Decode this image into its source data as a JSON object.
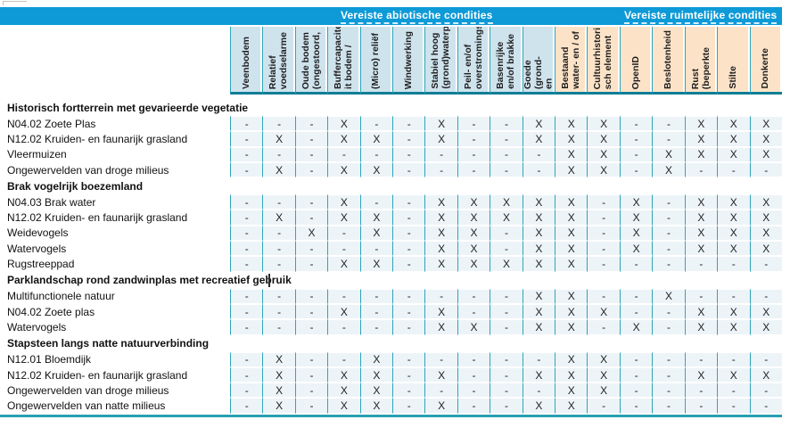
{
  "header": {
    "groups": [
      {
        "label": "Vereiste abiotische condities"
      },
      {
        "label": "Vereiste ruimtelijke condities"
      }
    ]
  },
  "columns": [
    {
      "label": "Veenbodem",
      "tint": "blue"
    },
    {
      "label": "Relatief\nvoedselarme",
      "tint": "blue"
    },
    {
      "label": "Oude bodem\n(ongestoord,",
      "tint": "blue"
    },
    {
      "label": "Buffercapacite\nit bodem /",
      "tint": "blue"
    },
    {
      "label": "(Micro) reliëf",
      "tint": "blue"
    },
    {
      "label": "Windwerking",
      "tint": "blue"
    },
    {
      "label": "Stabiel hoog\n(grond)waterp",
      "tint": "blue"
    },
    {
      "label": "Peil- en/of\noverstromings",
      "tint": "blue"
    },
    {
      "label": "Basenrijke\nen/of brakke",
      "tint": "blue"
    },
    {
      "label": "Goede (grond-\nen",
      "tint": "blue"
    },
    {
      "label": "Bestaand\nwater- en / of",
      "tint": "peach"
    },
    {
      "label": "Cultuurhistori\nsch element",
      "tint": "peach"
    },
    {
      "label": "OpenID",
      "tint": "peach"
    },
    {
      "label": "Beslotenheid",
      "tint": "peach"
    },
    {
      "label": "Rust\n(beperkte",
      "tint": "peach"
    },
    {
      "label": "Stilte",
      "tint": "peach"
    },
    {
      "label": "Donkerte",
      "tint": "peach"
    }
  ],
  "sections": [
    {
      "title": "Historisch fortterrein met gevarieerde vegetatie",
      "caret": false,
      "rows": [
        {
          "label": "N04.02 Zoete Plas",
          "values": [
            "-",
            "-",
            "-",
            "X",
            "-",
            "-",
            "X",
            "-",
            "-",
            "X",
            "X",
            "X",
            "-",
            "-",
            "X",
            "X",
            "X"
          ]
        },
        {
          "label": "N12.02 Kruiden- en faunarijk grasland",
          "values": [
            "-",
            "X",
            "-",
            "X",
            "X",
            "-",
            "X",
            "-",
            "-",
            "X",
            "X",
            "X",
            "-",
            "-",
            "X",
            "X",
            "X"
          ]
        },
        {
          "label": "Vleermuizen",
          "values": [
            "-",
            "-",
            "-",
            "-",
            "-",
            "-",
            "-",
            "-",
            "-",
            "-",
            "X",
            "X",
            "-",
            "X",
            "X",
            "X",
            "X"
          ]
        },
        {
          "label": "Ongewervelden van droge milieus",
          "values": [
            "-",
            "X",
            "-",
            "X",
            "X",
            "-",
            "-",
            "-",
            "-",
            "-",
            "X",
            "X",
            "-",
            "X",
            "-",
            "-",
            "-"
          ]
        }
      ]
    },
    {
      "title": "Brak vogelrijk boezemland",
      "caret": false,
      "rows": [
        {
          "label": "N04.03 Brak water",
          "values": [
            "-",
            "-",
            "-",
            "X",
            "-",
            "-",
            "X",
            "X",
            "X",
            "X",
            "X",
            "-",
            "X",
            "-",
            "X",
            "X",
            "X"
          ]
        },
        {
          "label": "N12.02 Kruiden- en faunarijk grasland",
          "values": [
            "-",
            "X",
            "-",
            "X",
            "X",
            "-",
            "X",
            "X",
            "X",
            "X",
            "X",
            "-",
            "X",
            "-",
            "X",
            "X",
            "X"
          ]
        },
        {
          "label": "Weidevogels",
          "values": [
            "-",
            "-",
            "X",
            "-",
            "X",
            "-",
            "X",
            "X",
            "-",
            "X",
            "X",
            "-",
            "X",
            "-",
            "X",
            "X",
            "X"
          ]
        },
        {
          "label": "Watervogels",
          "values": [
            "-",
            "-",
            "-",
            "-",
            "-",
            "-",
            "X",
            "X",
            "-",
            "X",
            "X",
            "-",
            "X",
            "-",
            "X",
            "X",
            "X"
          ]
        },
        {
          "label": "Rugstreeppad",
          "values": [
            "-",
            "-",
            "-",
            "X",
            "X",
            "-",
            "X",
            "X",
            "X",
            "X",
            "X",
            "-",
            "-",
            "-",
            "-",
            "-",
            "-"
          ]
        }
      ]
    },
    {
      "title": "Parklandschap rond zandwinplas met recreatief gebruik",
      "caret": true,
      "rows": [
        {
          "label": "Multifunctionele natuur",
          "values": [
            "-",
            "-",
            "-",
            "-",
            "-",
            "-",
            "-",
            "-",
            "-",
            "X",
            "X",
            "-",
            "-",
            "X",
            "-",
            "-",
            "-"
          ]
        },
        {
          "label": "N04.02 Zoete plas",
          "values": [
            "-",
            "-",
            "-",
            "X",
            "-",
            "-",
            "X",
            "-",
            "-",
            "X",
            "X",
            "X",
            "-",
            "-",
            "X",
            "X",
            "X"
          ]
        },
        {
          "label": "Watervogels",
          "values": [
            "-",
            "-",
            "-",
            "-",
            "-",
            "-",
            "X",
            "X",
            "-",
            "X",
            "X",
            "-",
            "X",
            "-",
            "X",
            "X",
            "X"
          ]
        }
      ]
    },
    {
      "title": "Stapsteen langs natte natuurverbinding",
      "caret": false,
      "rows": [
        {
          "label": "N12.01 Bloemdijk",
          "values": [
            "-",
            "X",
            "-",
            "-",
            "X",
            "-",
            "-",
            "-",
            "-",
            "-",
            "X",
            "X",
            "-",
            "-",
            "-",
            "-",
            "-"
          ]
        },
        {
          "label": "N12.02 Kruiden- en faunarijk grasland",
          "values": [
            "-",
            "X",
            "-",
            "X",
            "X",
            "-",
            "X",
            "-",
            "-",
            "X",
            "X",
            "X",
            "-",
            "-",
            "X",
            "X",
            "X"
          ]
        },
        {
          "label": "Ongewervelden van droge milieus",
          "values": [
            "-",
            "X",
            "-",
            "X",
            "X",
            "-",
            "-",
            "-",
            "-",
            "-",
            "X",
            "X",
            "-",
            "-",
            "-",
            "-",
            "-"
          ]
        },
        {
          "label": "Ongewervelden van natte milieus",
          "values": [
            "-",
            "X",
            "-",
            "X",
            "X",
            "-",
            "X",
            "-",
            "-",
            "X",
            "X",
            "-",
            "-",
            "-",
            "-",
            "-",
            "-"
          ]
        }
      ]
    }
  ],
  "colors": {
    "band_blue": "#0d9ad7",
    "header_blue": "#cfe3ed",
    "header_peach": "#fce3c8",
    "grid_teal": "#2ea4b7",
    "header_underline_line": "#0f7e96",
    "row_bg": "#edf4f8",
    "bottom_line": "#27a0b1"
  }
}
